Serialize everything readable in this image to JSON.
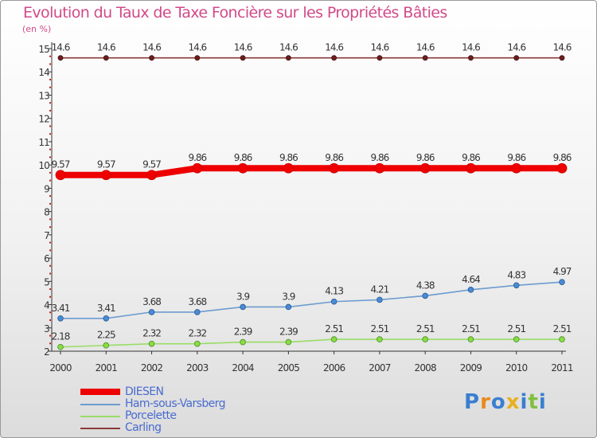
{
  "title": "Evolution du Taux de Taxe Foncière sur les Propriétés Bâties",
  "unit_label": "(en %)",
  "colors": {
    "DIESEN": "#ee0000",
    "Ham-sous-Varsberg": "#6c9cd0",
    "Porcelette": "#99dd66",
    "Carling": "#8b3a3a"
  },
  "logo": {
    "text": "Proxiti",
    "letters": [
      "P",
      "r",
      "o",
      "x",
      "i",
      "t",
      "i"
    ]
  },
  "chart_data": {
    "type": "line",
    "title": "Evolution du Taux de Taxe Foncière sur les Propriétés Bâties",
    "ylabel": "(en %)",
    "xlabel": "",
    "x": [
      "2000",
      "2001",
      "2002",
      "2003",
      "2004",
      "2005",
      "2006",
      "2007",
      "2008",
      "2009",
      "2010",
      "2011"
    ],
    "ylim": [
      2,
      15
    ],
    "yticks": [
      2,
      3,
      4,
      5,
      6,
      7,
      8,
      9,
      10,
      11,
      12,
      13,
      14,
      15
    ],
    "grid": false,
    "legend_position": "bottom-left",
    "series": [
      {
        "name": "DIESEN",
        "values": [
          9.57,
          9.57,
          9.57,
          9.86,
          9.86,
          9.86,
          9.86,
          9.86,
          9.86,
          9.86,
          9.86,
          9.86
        ],
        "labels": [
          "9.57",
          "9.57",
          "9.57",
          "9.86",
          "9.86",
          "9.86",
          "9.86",
          "9.86",
          "9.86",
          "9.86",
          "9.86",
          "9.86"
        ]
      },
      {
        "name": "Ham-sous-Varsberg",
        "values": [
          3.41,
          3.41,
          3.68,
          3.68,
          3.9,
          3.9,
          4.13,
          4.21,
          4.38,
          4.64,
          4.83,
          4.97
        ],
        "labels": [
          "3.41",
          "3.41",
          "3.68",
          "3.68",
          "3.9",
          "3.9",
          "4.13",
          "4.21",
          "4.38",
          "4.64",
          "4.83",
          "4.97"
        ]
      },
      {
        "name": "Porcelette",
        "values": [
          2.18,
          2.25,
          2.32,
          2.32,
          2.39,
          2.39,
          2.51,
          2.51,
          2.51,
          2.51,
          2.51,
          2.51
        ],
        "labels": [
          "2.18",
          "2.25",
          "2.32",
          "2.32",
          "2.39",
          "2.39",
          "2.51",
          "2.51",
          "2.51",
          "2.51",
          "2.51",
          "2.51"
        ]
      },
      {
        "name": "Carling",
        "values": [
          14.6,
          14.6,
          14.6,
          14.6,
          14.6,
          14.6,
          14.6,
          14.6,
          14.6,
          14.6,
          14.6,
          14.6
        ],
        "labels": [
          "14.6",
          "14.6",
          "14.6",
          "14.6",
          "14.6",
          "14.6",
          "14.6",
          "14.6",
          "14.6",
          "14.6",
          "14.6",
          "14.6"
        ]
      }
    ]
  }
}
